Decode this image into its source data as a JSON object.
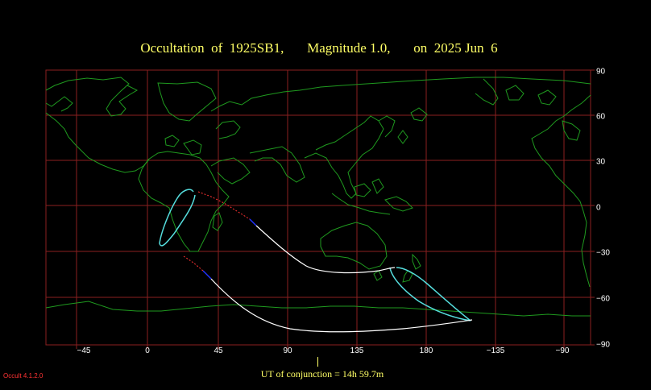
{
  "title": {
    "object": "Occultation  of  1925SB1,",
    "magnitude": "Magnitude 1.0,",
    "date": "on  2025 Jun  6"
  },
  "map": {
    "longitude_labels": [
      "−45",
      "0",
      "45",
      "90",
      "135",
      "180",
      "−135",
      "−90"
    ],
    "latitude_labels": [
      "90",
      "60",
      "30",
      "0",
      "−30",
      "−60",
      "−90"
    ],
    "colors": {
      "background": "#000000",
      "grid": "#8b2020",
      "coastline": "#1f9a1f",
      "central_path": "#ffffff",
      "sigma_limits": "#55dddd",
      "night_segment": "#ff3333",
      "twilight_segment": "#2233ff"
    }
  },
  "footer": {
    "ut_of_conjunction": "UT of conjunction = 14h 59.7m",
    "version": "Occult 4.1.2.0"
  }
}
